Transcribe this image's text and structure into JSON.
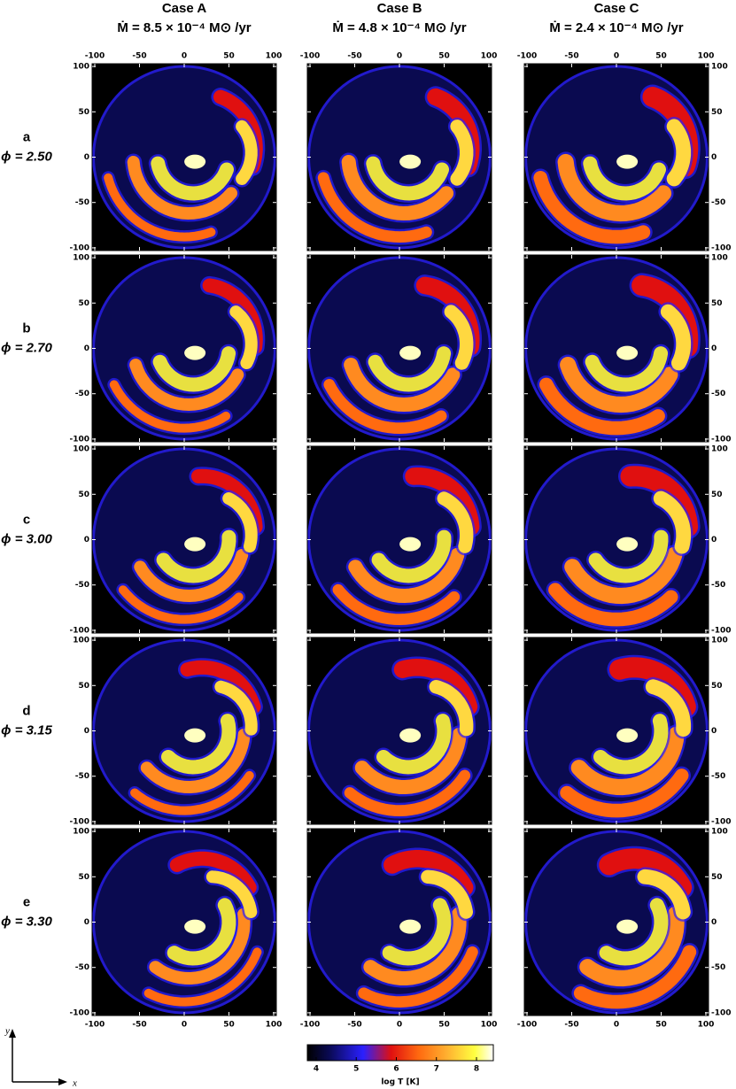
{
  "chart_data": {
    "type": "image-grid",
    "columns": [
      {
        "title": "Case A",
        "subtitle": "Ṁ = 8.5 × 10⁻⁴ M⊙ /yr"
      },
      {
        "title": "Case B",
        "subtitle": "Ṁ = 4.8 × 10⁻⁴ M⊙ /yr"
      },
      {
        "title": "Case C",
        "subtitle": "Ṁ = 2.4 × 10⁻⁴ M⊙ /yr"
      }
    ],
    "rows": [
      {
        "letter": "a",
        "phase": "ϕ = 2.50"
      },
      {
        "letter": "b",
        "phase": "ϕ = 2.70"
      },
      {
        "letter": "c",
        "phase": "ϕ = 3.00"
      },
      {
        "letter": "d",
        "phase": "ϕ = 3.15"
      },
      {
        "letter": "e",
        "phase": "ϕ = 3.30"
      }
    ],
    "xlim": [
      -103,
      103
    ],
    "ylim": [
      -103,
      103
    ],
    "xticks": [
      -100,
      -50,
      0,
      50,
      100
    ],
    "yticks": [
      -100,
      -50,
      0,
      50,
      100
    ],
    "colorbar": {
      "label": "log T  [K]",
      "lim": [
        3.78,
        8.42
      ],
      "ticks": [
        4,
        5,
        6,
        7,
        8
      ]
    },
    "axes_indicator": {
      "x": "x",
      "y": "y"
    }
  }
}
